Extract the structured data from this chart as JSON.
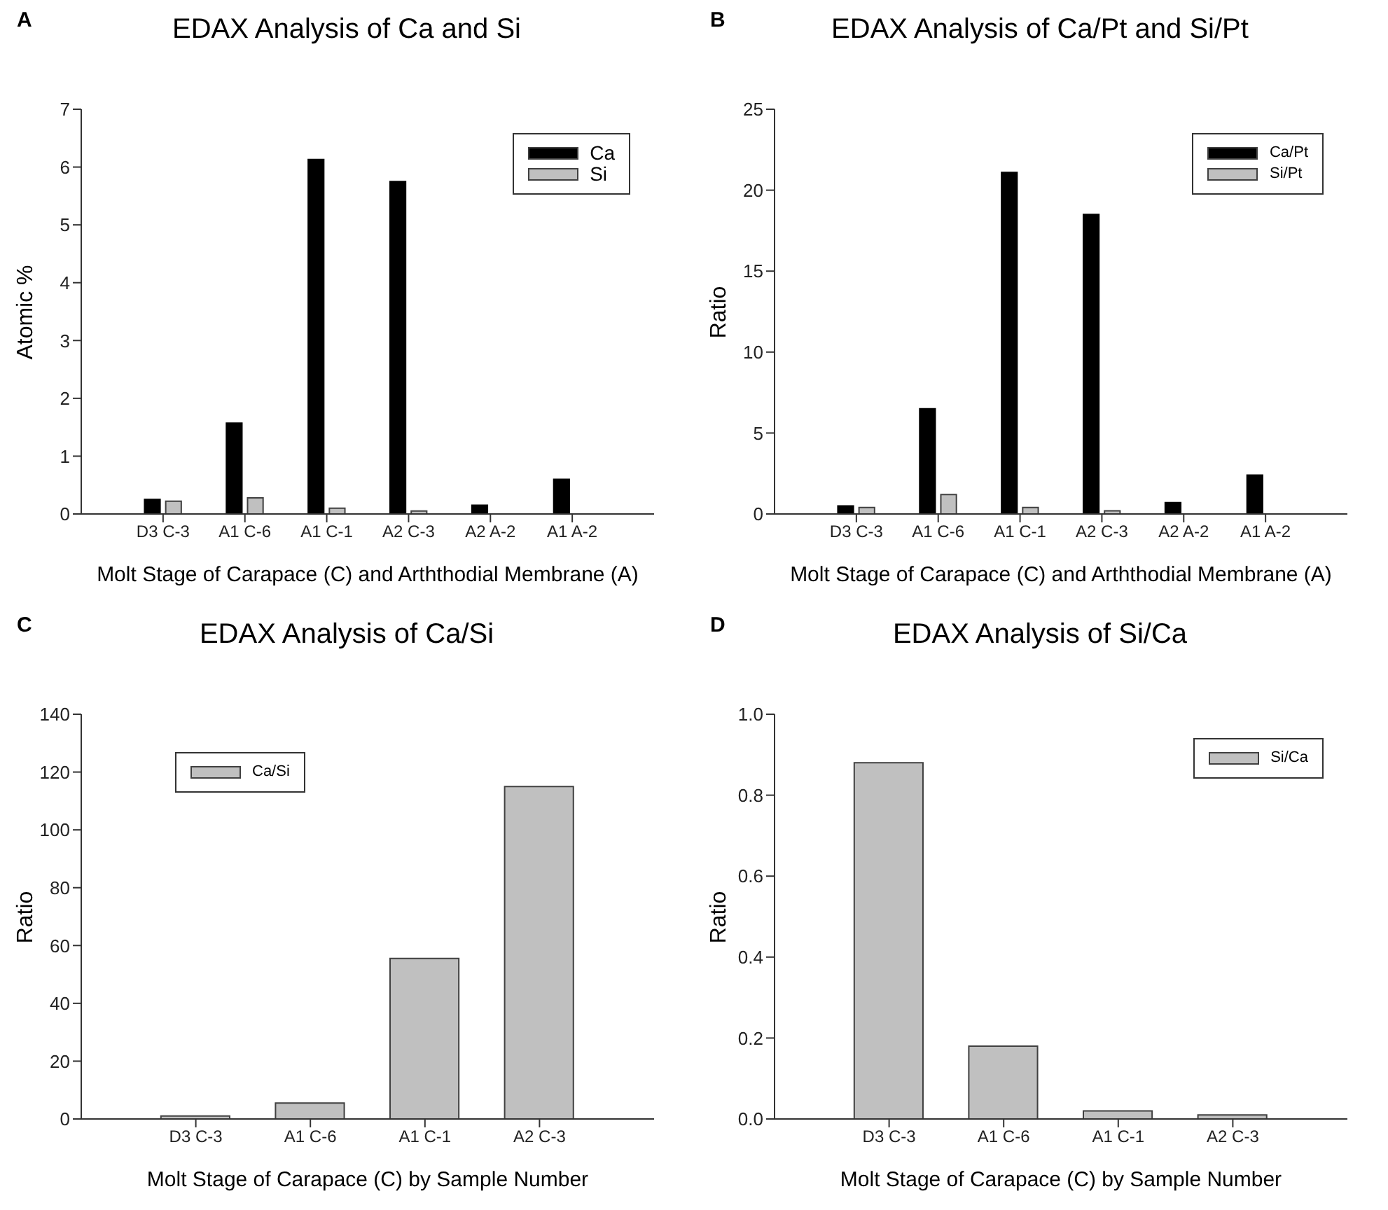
{
  "chart_data": [
    {
      "type": "bar",
      "title": "EDAX Analysis of Ca and Si",
      "xlabel": "Molt Stage of Carapace (C) and Arththodial Membrane (A)",
      "ylabel": "Atomic %",
      "annotations": [
        "A"
      ],
      "categories": [
        "D3 C-3",
        "A1 C-6",
        "A1 C-1",
        "A2 C-3",
        "A2 A-2",
        "A1 A-2"
      ],
      "series": [
        {
          "name": "Ca",
          "color": "#000000",
          "values": [
            0.25,
            1.57,
            6.13,
            5.75,
            0.15,
            0.6
          ]
        },
        {
          "name": "Si",
          "color": "#c0c0c0",
          "values": [
            0.22,
            0.28,
            0.1,
            0.05,
            null,
            null
          ]
        }
      ],
      "ylim": [
        0,
        7
      ],
      "yticks": [
        0,
        1,
        2,
        3,
        4,
        5,
        6,
        7
      ],
      "legend": "top right"
    },
    {
      "type": "bar",
      "title": "EDAX Analysis of Ca/Pt and Si/Pt",
      "xlabel": "Molt Stage of Carapace (C) and Arththodial Membrane (A)",
      "ylabel": "Ratio",
      "annotations": [
        "B"
      ],
      "categories": [
        "D3 C-3",
        "A1 C-6",
        "A1 C-1",
        "A2 C-3",
        "A2 A-2",
        "A1 A-2"
      ],
      "series": [
        {
          "name": "Ca/Pt",
          "color": "#000000",
          "values": [
            0.5,
            6.5,
            21.1,
            18.5,
            0.7,
            2.4
          ]
        },
        {
          "name": "Si/Pt",
          "color": "#c0c0c0",
          "values": [
            0.4,
            1.2,
            0.4,
            0.2,
            null,
            null
          ]
        }
      ],
      "ylim": [
        0,
        25
      ],
      "yticks": [
        0,
        5,
        10,
        15,
        20,
        25
      ],
      "legend": "top right"
    },
    {
      "type": "bar",
      "title": "EDAX Analysis of Ca/Si",
      "xlabel": "Molt Stage of Carapace (C) by Sample Number",
      "ylabel": "Ratio",
      "annotations": [
        "C"
      ],
      "categories": [
        "D3 C-3",
        "A1 C-6",
        "A1 C-1",
        "A2 C-3"
      ],
      "series": [
        {
          "name": "Ca/Si",
          "color": "#c0c0c0",
          "values": [
            1,
            5.5,
            55.5,
            115
          ]
        }
      ],
      "ylim": [
        0,
        140
      ],
      "yticks": [
        0,
        20,
        40,
        60,
        80,
        100,
        120,
        140
      ],
      "legend": "top left"
    },
    {
      "type": "bar",
      "title": "EDAX Analysis of Si/Ca",
      "xlabel": "Molt Stage of Carapace (C) by Sample Number",
      "ylabel": "Ratio",
      "annotations": [
        "D"
      ],
      "categories": [
        "D3 C-3",
        "A1 C-6",
        "A1 C-1",
        "A2 C-3"
      ],
      "series": [
        {
          "name": "Si/Ca",
          "color": "#c0c0c0",
          "values": [
            0.88,
            0.18,
            0.02,
            0.01
          ]
        }
      ],
      "ylim": [
        0,
        1.0
      ],
      "yticks": [
        {
          "value": 0,
          "label": "0.0"
        },
        {
          "value": 0.2,
          "label": "0.2"
        },
        {
          "value": 0.4,
          "label": "0.4"
        },
        {
          "value": 0.6,
          "label": "0.6"
        },
        {
          "value": 0.8,
          "label": "0.8"
        },
        {
          "value": 1,
          "label": "1.0"
        }
      ],
      "legend": "top right"
    }
  ]
}
